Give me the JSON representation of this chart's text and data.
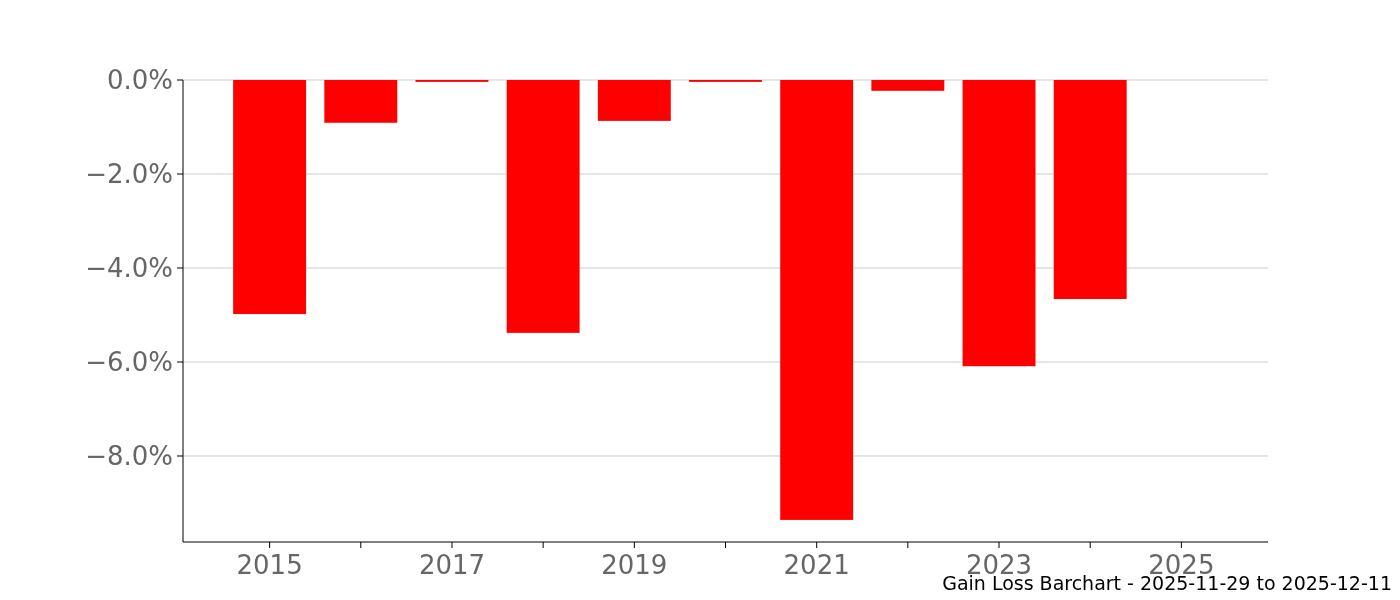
{
  "chart_data": {
    "type": "bar",
    "title": "Gain Loss Barchart - 2025-11-29 to 2025-12-11",
    "x": [
      2015,
      2016,
      2017,
      2018,
      2019,
      2020,
      2021,
      2022,
      2023,
      2024
    ],
    "values": [
      -4.98,
      -0.91,
      -0.04,
      -5.38,
      -0.87,
      -0.04,
      -9.36,
      -0.23,
      -6.09,
      -4.66
    ],
    "color": "#ff0000",
    "xlim": [
      2014.05,
      2025.95
    ],
    "xticks": [
      2015,
      {
        "value": 2016,
        "label": null
      },
      2017,
      {
        "value": 2018,
        "label": null
      },
      2019,
      {
        "value": 2020,
        "label": null
      },
      2021,
      {
        "value": 2022,
        "label": null
      },
      2023,
      {
        "value": 2024,
        "label": null
      },
      2025
    ],
    "ylim": [
      -9.83,
      0
    ],
    "yticks": [
      {
        "value": 0,
        "label": "0.0%"
      },
      {
        "value": -2,
        "label": "−2.0%"
      },
      {
        "value": -4,
        "label": "−4.0%"
      },
      {
        "value": -6,
        "label": "−6.0%"
      },
      {
        "value": -8,
        "label": "−8.0%"
      }
    ],
    "grid": "y"
  }
}
